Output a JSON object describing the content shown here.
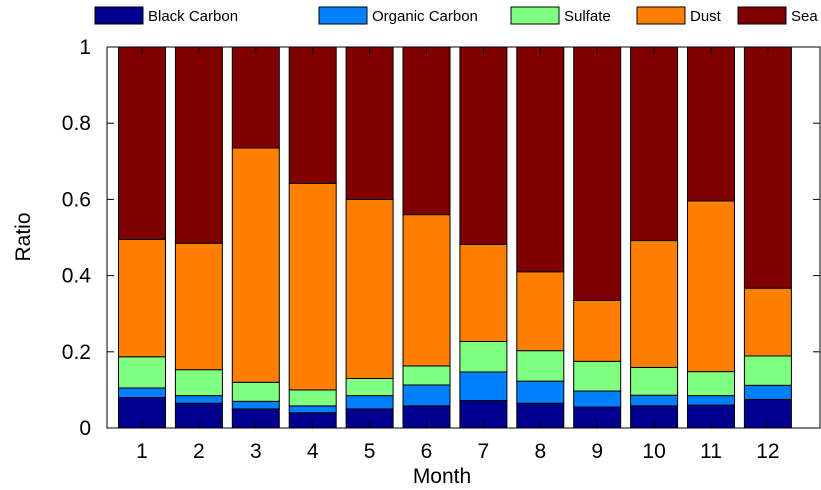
{
  "chart_data": {
    "type": "bar",
    "stacked": true,
    "categories": [
      "1",
      "2",
      "3",
      "4",
      "5",
      "6",
      "7",
      "8",
      "9",
      "10",
      "11",
      "12"
    ],
    "xlabel": "Month",
    "ylabel": "Ratio",
    "ylim": [
      0,
      1
    ],
    "yticks": [
      "0",
      "0.2",
      "0.4",
      "0.6",
      "0.8",
      "1"
    ],
    "grid": false,
    "legend_position": "top",
    "series": [
      {
        "name": "Black Carbon",
        "color": "#00008f",
        "values": [
          0.08,
          0.065,
          0.05,
          0.04,
          0.05,
          0.058,
          0.072,
          0.065,
          0.055,
          0.058,
          0.06,
          0.075
        ]
      },
      {
        "name": "Organic Carbon",
        "color": "#0080ff",
        "values": [
          0.025,
          0.02,
          0.02,
          0.018,
          0.035,
          0.055,
          0.075,
          0.058,
          0.042,
          0.028,
          0.025,
          0.037
        ]
      },
      {
        "name": "Sulfate",
        "color": "#80ff80",
        "values": [
          0.082,
          0.068,
          0.05,
          0.042,
          0.045,
          0.05,
          0.08,
          0.08,
          0.078,
          0.073,
          0.063,
          0.077
        ]
      },
      {
        "name": "Dust",
        "color": "#ff8000",
        "values": [
          0.308,
          0.332,
          0.615,
          0.542,
          0.47,
          0.397,
          0.255,
          0.207,
          0.16,
          0.333,
          0.448,
          0.178
        ]
      },
      {
        "name": "Sea Salt",
        "color": "#800000",
        "values": [
          0.505,
          0.515,
          0.265,
          0.358,
          0.4,
          0.44,
          0.518,
          0.59,
          0.665,
          0.508,
          0.404,
          0.633
        ]
      }
    ]
  }
}
